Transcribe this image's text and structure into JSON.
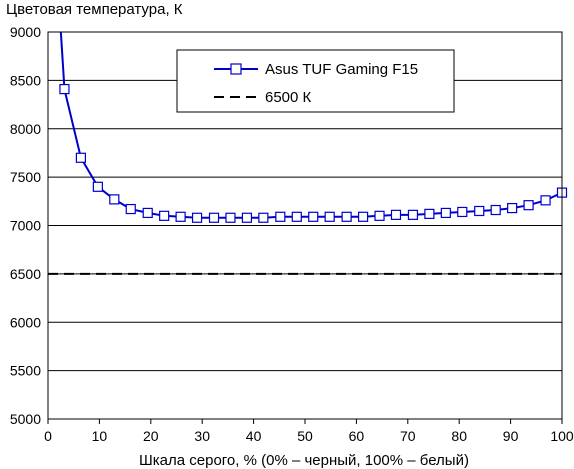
{
  "chart_data": {
    "type": "line",
    "title": "",
    "ylabel": "Цветовая температура, К",
    "xlabel": "Шкала серого, % (0% – черный, 100% – белый)",
    "xlim": [
      0,
      100
    ],
    "ylim": [
      5000,
      9000
    ],
    "x_ticks": [
      "0",
      "10",
      "20",
      "30",
      "40",
      "50",
      "60",
      "70",
      "80",
      "90",
      "100"
    ],
    "y_ticks": [
      "5000",
      "5500",
      "6000",
      "6500",
      "7000",
      "7500",
      "8000",
      "8500",
      "9000"
    ],
    "grid": "horizontal",
    "legend_position": "top-center",
    "series": [
      {
        "name": "Asus TUF Gaming F15",
        "color": "#0000cc",
        "marker": "square",
        "x": [
          3.2,
          6.4,
          9.7,
          12.9,
          16.1,
          19.4,
          22.6,
          25.8,
          29.0,
          32.3,
          35.5,
          38.7,
          41.9,
          45.2,
          48.4,
          51.6,
          54.8,
          58.1,
          61.3,
          64.5,
          67.7,
          71.0,
          74.2,
          77.4,
          80.6,
          83.9,
          87.1,
          90.3,
          93.5,
          96.8,
          100.0
        ],
        "y": [
          8410,
          7700,
          7400,
          7270,
          7170,
          7130,
          7100,
          7090,
          7080,
          7080,
          7080,
          7080,
          7080,
          7090,
          7090,
          7090,
          7090,
          7090,
          7090,
          7100,
          7110,
          7110,
          7120,
          7130,
          7140,
          7150,
          7160,
          7180,
          7210,
          7260,
          7340
        ],
        "lead_in": {
          "x": [
            2.5,
            3.2
          ],
          "y": [
            9000,
            8410
          ]
        }
      },
      {
        "name": "6500 К",
        "color": "#000000",
        "style": "dashed",
        "x": [
          0,
          100
        ],
        "y": [
          6500,
          6500
        ]
      }
    ]
  }
}
